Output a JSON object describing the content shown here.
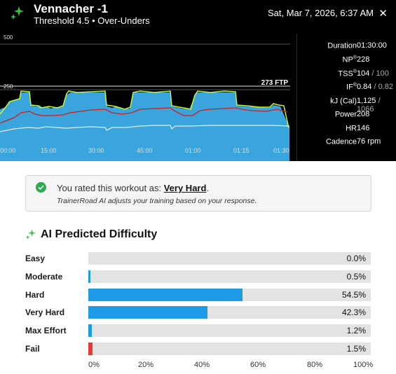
{
  "header": {
    "title": "Vennacher -1",
    "subtitle": "Threshold 4.5 • Over-Unders",
    "date": "Sat, Mar 7, 2026, 6:37 AM",
    "close_label": "✕",
    "icon": "sparkle-icon"
  },
  "workout_chart": {
    "y_labels": [
      "500",
      "250"
    ],
    "ftp_label": "273 FTP",
    "time_labels": [
      "00:00",
      "15:00",
      "30:00",
      "45:00",
      "01:00",
      "01:15",
      "01:30"
    ],
    "colors": {
      "area": "#3aa5dc",
      "power": "#c8f53a",
      "hr": "#d01c1c",
      "cadence": "#e8e8e8",
      "background": "#000000"
    }
  },
  "stats": [
    {
      "label": "Duration",
      "sup": "",
      "value": "01:30:00",
      "secondary": ""
    },
    {
      "label": "NP",
      "sup": "®",
      "value": "228",
      "secondary": ""
    },
    {
      "label": "TSS",
      "sup": "®",
      "value": "104",
      "secondary": " / 100"
    },
    {
      "label": "IF",
      "sup": "®",
      "value": "0.84",
      "secondary": " / 0.82"
    },
    {
      "label": "kJ (Cal)",
      "sup": "",
      "value": "1,125",
      "secondary": " / 1066"
    },
    {
      "label": "Power",
      "sup": "",
      "value": "208",
      "secondary": ""
    },
    {
      "label": "HR",
      "sup": "",
      "value": "146",
      "secondary": ""
    },
    {
      "label": "Cadence",
      "sup": "",
      "value": "76 rpm",
      "secondary": ""
    }
  ],
  "rating": {
    "prefix": "You rated this workout as: ",
    "value": "Very Hard",
    "suffix": ".",
    "note": "TrainerRoad AI adjusts your training based on your response.",
    "icon": "check-circle-icon",
    "check_color": "#2fa84f"
  },
  "difficulty": {
    "title": "AI Predicted Difficulty",
    "icon": "sparkle-icon",
    "bar_color": "#1e9be6",
    "fail_color": "#e53935",
    "items": [
      {
        "label": "Easy",
        "percent": 0.0,
        "text": "0.0%"
      },
      {
        "label": "Moderate",
        "percent": 0.5,
        "text": "0.5%"
      },
      {
        "label": "Hard",
        "percent": 54.5,
        "text": "54.5%"
      },
      {
        "label": "Very Hard",
        "percent": 42.3,
        "text": "42.3%"
      },
      {
        "label": "Max Effort",
        "percent": 1.2,
        "text": "1.2%"
      },
      {
        "label": "Fail",
        "percent": 1.5,
        "text": "1.5%"
      }
    ],
    "axis": [
      "0%",
      "20%",
      "40%",
      "60%",
      "80%",
      "100%"
    ]
  }
}
